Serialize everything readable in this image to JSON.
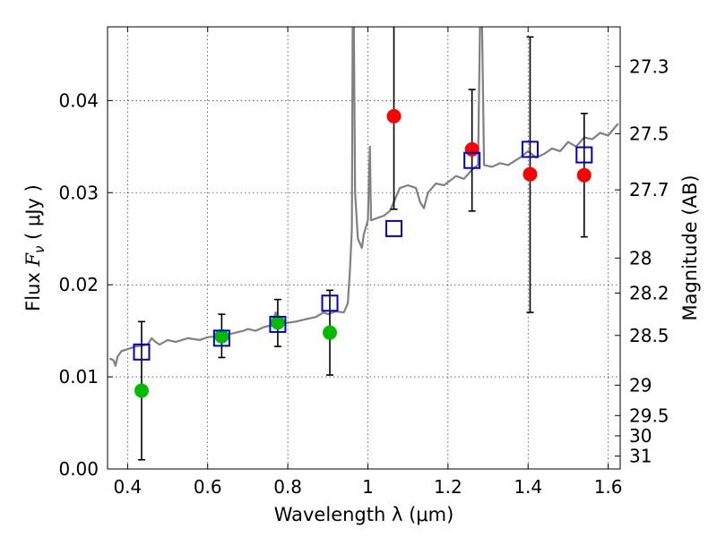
{
  "chart_data": {
    "type": "scatter",
    "xlabel": "Wavelength  λ (μm)",
    "ylabel": "Flux  F_ν  ( μJy )",
    "ylabel_parts": {
      "prefix": "Flux ",
      "symbol": "F",
      "subscript": "ν",
      "suffix": " ( μJy )"
    },
    "y2label": "Magnitude (AB)",
    "xlim": [
      0.35,
      1.63
    ],
    "ylim": [
      0.0,
      0.048
    ],
    "grid": true,
    "x_ticks": [
      0.4,
      0.6,
      0.8,
      1.0,
      1.2,
      1.4,
      1.6
    ],
    "x_tick_labels": [
      "0.4",
      "0.6",
      "0.8",
      "1",
      "1.2",
      "1.4",
      "1.6"
    ],
    "y_ticks": [
      0.0,
      0.01,
      0.02,
      0.03,
      0.04
    ],
    "y_tick_labels": [
      "0.00",
      "0.01",
      "0.02",
      "0.03",
      "0.04"
    ],
    "y2_ticks": [
      {
        "label": "27.3",
        "flux": 0.0437
      },
      {
        "label": "27.5",
        "flux": 0.0364
      },
      {
        "label": "27.7",
        "flux": 0.0303
      },
      {
        "label": "28",
        "flux": 0.0229
      },
      {
        "label": "28.2",
        "flux": 0.0191
      },
      {
        "label": "28.5",
        "flux": 0.0145
      },
      {
        "label": "29",
        "flux": 0.0091
      },
      {
        "label": "29.5",
        "flux": 0.0058
      },
      {
        "label": "30",
        "flux": 0.0036
      },
      {
        "label": "31",
        "flux": 0.0014
      }
    ],
    "model_spectrum": {
      "color": "#808080",
      "points": [
        [
          0.355,
          0.012
        ],
        [
          0.365,
          0.0118
        ],
        [
          0.37,
          0.0112
        ],
        [
          0.375,
          0.0122
        ],
        [
          0.385,
          0.0128
        ],
        [
          0.4,
          0.013
        ],
        [
          0.42,
          0.0133
        ],
        [
          0.45,
          0.0135
        ],
        [
          0.46,
          0.0142
        ],
        [
          0.47,
          0.0138
        ],
        [
          0.48,
          0.0135
        ],
        [
          0.5,
          0.014
        ],
        [
          0.52,
          0.0138
        ],
        [
          0.55,
          0.0142
        ],
        [
          0.58,
          0.014
        ],
        [
          0.6,
          0.0143
        ],
        [
          0.62,
          0.0144
        ],
        [
          0.63,
          0.0148
        ],
        [
          0.635,
          0.0141
        ],
        [
          0.65,
          0.0146
        ],
        [
          0.67,
          0.0148
        ],
        [
          0.69,
          0.015
        ],
        [
          0.7,
          0.0152
        ],
        [
          0.72,
          0.015
        ],
        [
          0.74,
          0.0154
        ],
        [
          0.76,
          0.0156
        ],
        [
          0.77,
          0.017
        ],
        [
          0.775,
          0.0155
        ],
        [
          0.79,
          0.0158
        ],
        [
          0.82,
          0.016
        ],
        [
          0.85,
          0.0163
        ],
        [
          0.87,
          0.0165
        ],
        [
          0.89,
          0.017
        ],
        [
          0.9,
          0.0168
        ],
        [
          0.92,
          0.0171
        ],
        [
          0.94,
          0.017
        ],
        [
          0.95,
          0.018
        ],
        [
          0.955,
          0.0215
        ],
        [
          0.96,
          0.026
        ],
        [
          0.962,
          0.0485
        ],
        [
          0.965,
          0.0485
        ],
        [
          0.968,
          0.03
        ],
        [
          0.975,
          0.025
        ],
        [
          0.985,
          0.024
        ],
        [
          0.99,
          0.0255
        ],
        [
          1.0,
          0.027
        ],
        [
          1.005,
          0.035
        ],
        [
          1.008,
          0.027
        ],
        [
          1.02,
          0.0272
        ],
        [
          1.04,
          0.0275
        ],
        [
          1.055,
          0.028
        ],
        [
          1.065,
          0.029
        ],
        [
          1.08,
          0.0305
        ],
        [
          1.1,
          0.0308
        ],
        [
          1.12,
          0.0305
        ],
        [
          1.13,
          0.029
        ],
        [
          1.14,
          0.0283
        ],
        [
          1.15,
          0.03
        ],
        [
          1.17,
          0.031
        ],
        [
          1.19,
          0.0308
        ],
        [
          1.22,
          0.0318
        ],
        [
          1.24,
          0.0315
        ],
        [
          1.26,
          0.0325
        ],
        [
          1.275,
          0.033
        ],
        [
          1.28,
          0.0485
        ],
        [
          1.285,
          0.0485
        ],
        [
          1.29,
          0.033
        ],
        [
          1.31,
          0.0328
        ],
        [
          1.33,
          0.0332
        ],
        [
          1.35,
          0.033
        ],
        [
          1.38,
          0.0338
        ],
        [
          1.4,
          0.0345
        ],
        [
          1.42,
          0.0338
        ],
        [
          1.44,
          0.0342
        ],
        [
          1.46,
          0.0348
        ],
        [
          1.48,
          0.0345
        ],
        [
          1.5,
          0.0355
        ],
        [
          1.52,
          0.035
        ],
        [
          1.54,
          0.036
        ],
        [
          1.56,
          0.0358
        ],
        [
          1.58,
          0.0365
        ],
        [
          1.6,
          0.0362
        ],
        [
          1.615,
          0.037
        ],
        [
          1.625,
          0.0375
        ]
      ]
    },
    "series": [
      {
        "marker": "square",
        "color": "#0000cc",
        "points": [
          {
            "x": 0.435,
            "y": 0.0127
          },
          {
            "x": 0.635,
            "y": 0.0142
          },
          {
            "x": 0.775,
            "y": 0.0157
          },
          {
            "x": 0.905,
            "y": 0.018
          },
          {
            "x": 1.065,
            "y": 0.0261
          },
          {
            "x": 1.26,
            "y": 0.0335
          },
          {
            "x": 1.405,
            "y": 0.0347
          },
          {
            "x": 1.54,
            "y": 0.0341
          }
        ]
      },
      {
        "marker": "circle",
        "color": "#00bb00",
        "points": [
          {
            "x": 0.435,
            "y": 0.0085,
            "err_lo": 0.001,
            "err_hi": 0.016
          },
          {
            "x": 0.635,
            "y": 0.0144,
            "err_lo": 0.0121,
            "err_hi": 0.0168
          },
          {
            "x": 0.775,
            "y": 0.0159,
            "err_lo": 0.0133,
            "err_hi": 0.0184
          },
          {
            "x": 0.905,
            "y": 0.0148,
            "err_lo": 0.0102,
            "err_hi": 0.0194
          }
        ]
      },
      {
        "marker": "circle",
        "color": "#ff0000",
        "points": [
          {
            "x": 1.065,
            "y": 0.0383,
            "err_lo": 0.0282,
            "err_hi": 0.0485
          },
          {
            "x": 1.26,
            "y": 0.0347,
            "err_lo": 0.028,
            "err_hi": 0.0412
          },
          {
            "x": 1.405,
            "y": 0.032,
            "err_lo": 0.017,
            "err_hi": 0.0469
          },
          {
            "x": 1.54,
            "y": 0.0319,
            "err_lo": 0.0252,
            "err_hi": 0.0386
          }
        ]
      }
    ]
  }
}
